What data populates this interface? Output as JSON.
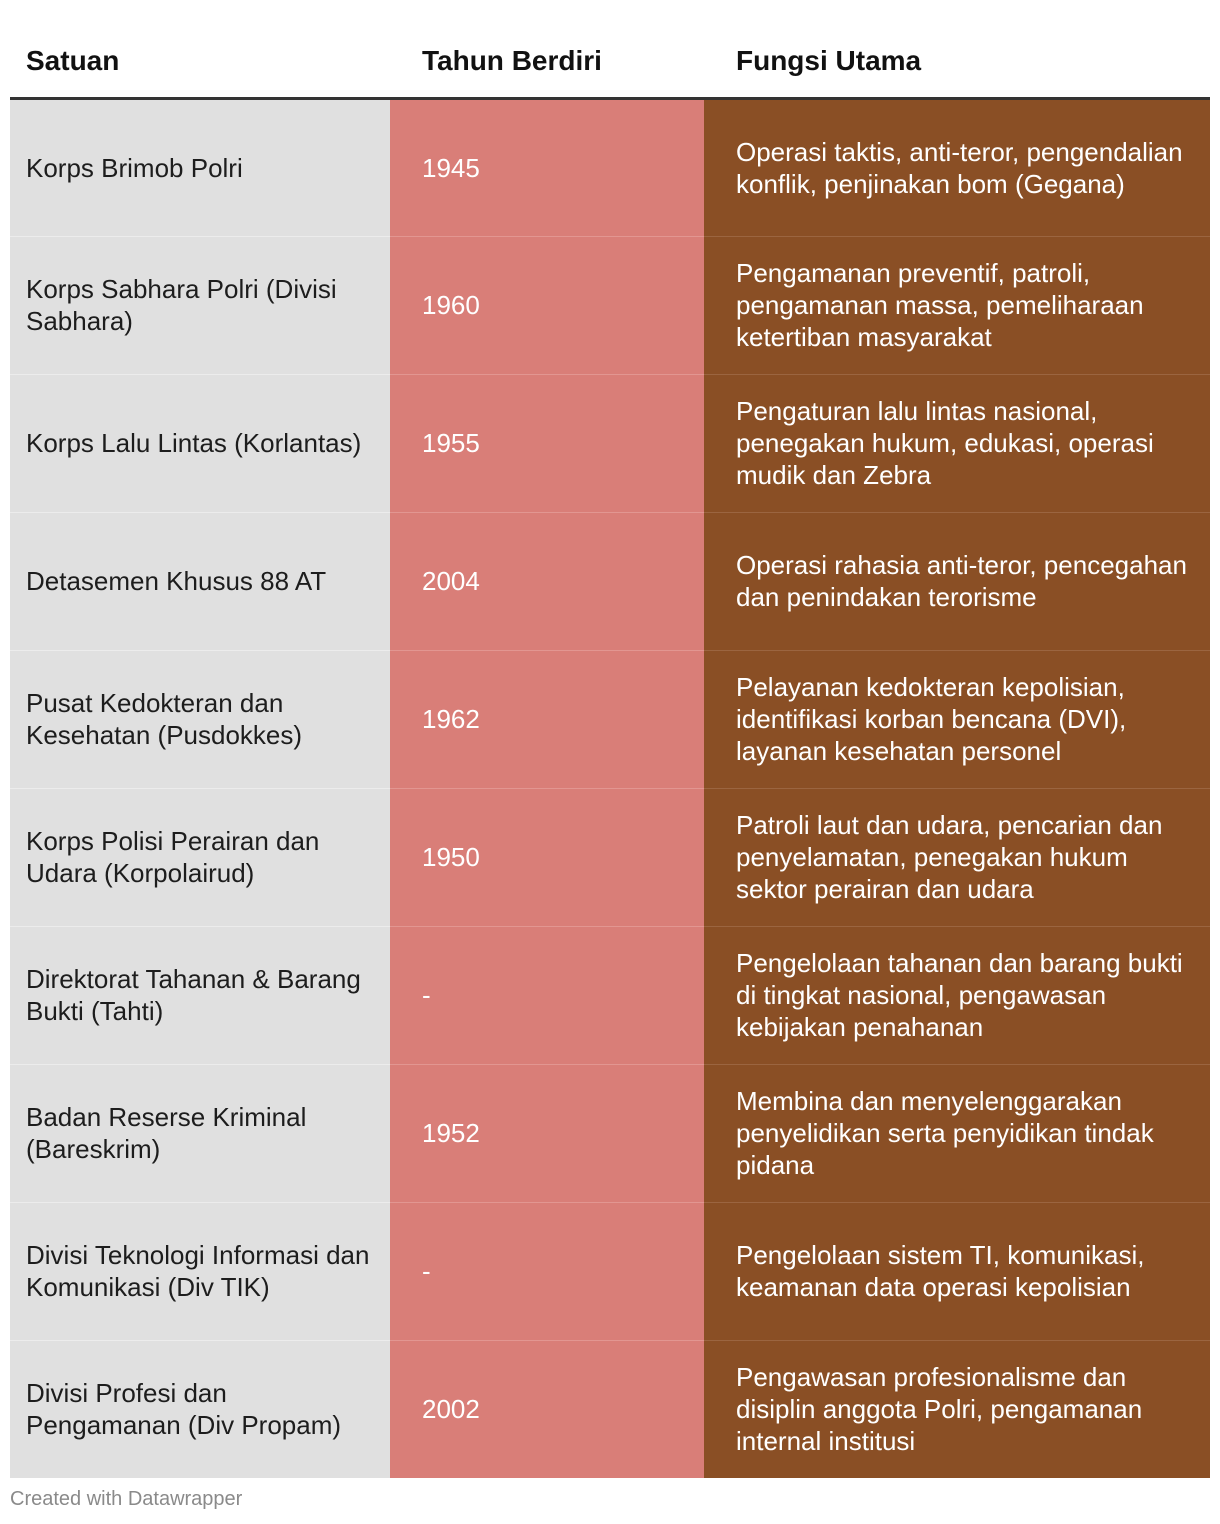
{
  "chart_data": {
    "type": "table",
    "columns": [
      "Satuan",
      "Tahun Berdiri",
      "Fungsi Utama"
    ],
    "rows": [
      [
        "Korps Brimob Polri",
        "1945",
        "Operasi taktis, anti-teror, pengendalian konflik, penjinakan bom (Gegana)"
      ],
      [
        "Korps Sabhara Polri (Divisi Sabhara)",
        "1960",
        "Pengamanan preventif, patroli, pengamanan massa, pemeliharaan ketertiban masyarakat"
      ],
      [
        "Korps Lalu Lintas (Korlantas)",
        "1955",
        "Pengaturan lalu lintas nasional, penegakan hukum, edukasi, operasi mudik dan Zebra"
      ],
      [
        "Detasemen Khusus 88 AT",
        "2004",
        "Operasi rahasia anti-teror, pencegahan dan penindakan terorisme"
      ],
      [
        "Pusat Kedokteran dan Kesehatan (Pusdokkes)",
        "1962",
        "Pelayanan kedokteran kepolisian, identifikasi korban bencana (DVI), layanan kesehatan personel"
      ],
      [
        "Korps Polisi Perairan dan Udara (Korpolairud)",
        "1950",
        "Patroli laut dan udara, pencarian dan penyelamatan, penegakan hukum sektor perairan dan udara"
      ],
      [
        "Direktorat Tahanan & Barang Bukti (Tahti)",
        "-",
        "Pengelolaan tahanan dan barang bukti di tingkat nasional, pengawasan kebijakan penahanan"
      ],
      [
        "Badan Reserse Kriminal (Bareskrim)",
        "1952",
        "Membina dan menyelenggarakan penyelidikan serta penyidikan tindak pidana"
      ],
      [
        "Divisi Teknologi Informasi dan Komunikasi (Div TIK)",
        "-",
        "Pengelolaan sistem TI, komunikasi, keamanan data operasi kepolisian"
      ],
      [
        "Divisi Profesi dan Pengamanan (Div Propam)",
        "2002",
        "Pengawasan profesionalisme dan disiplin anggota Polri, pengamanan internal institusi"
      ]
    ],
    "column_colors": [
      "#e0e0e0",
      "#d97e78",
      "#8a4f25"
    ]
  },
  "footer": {
    "credit": "Created with Datawrapper"
  }
}
